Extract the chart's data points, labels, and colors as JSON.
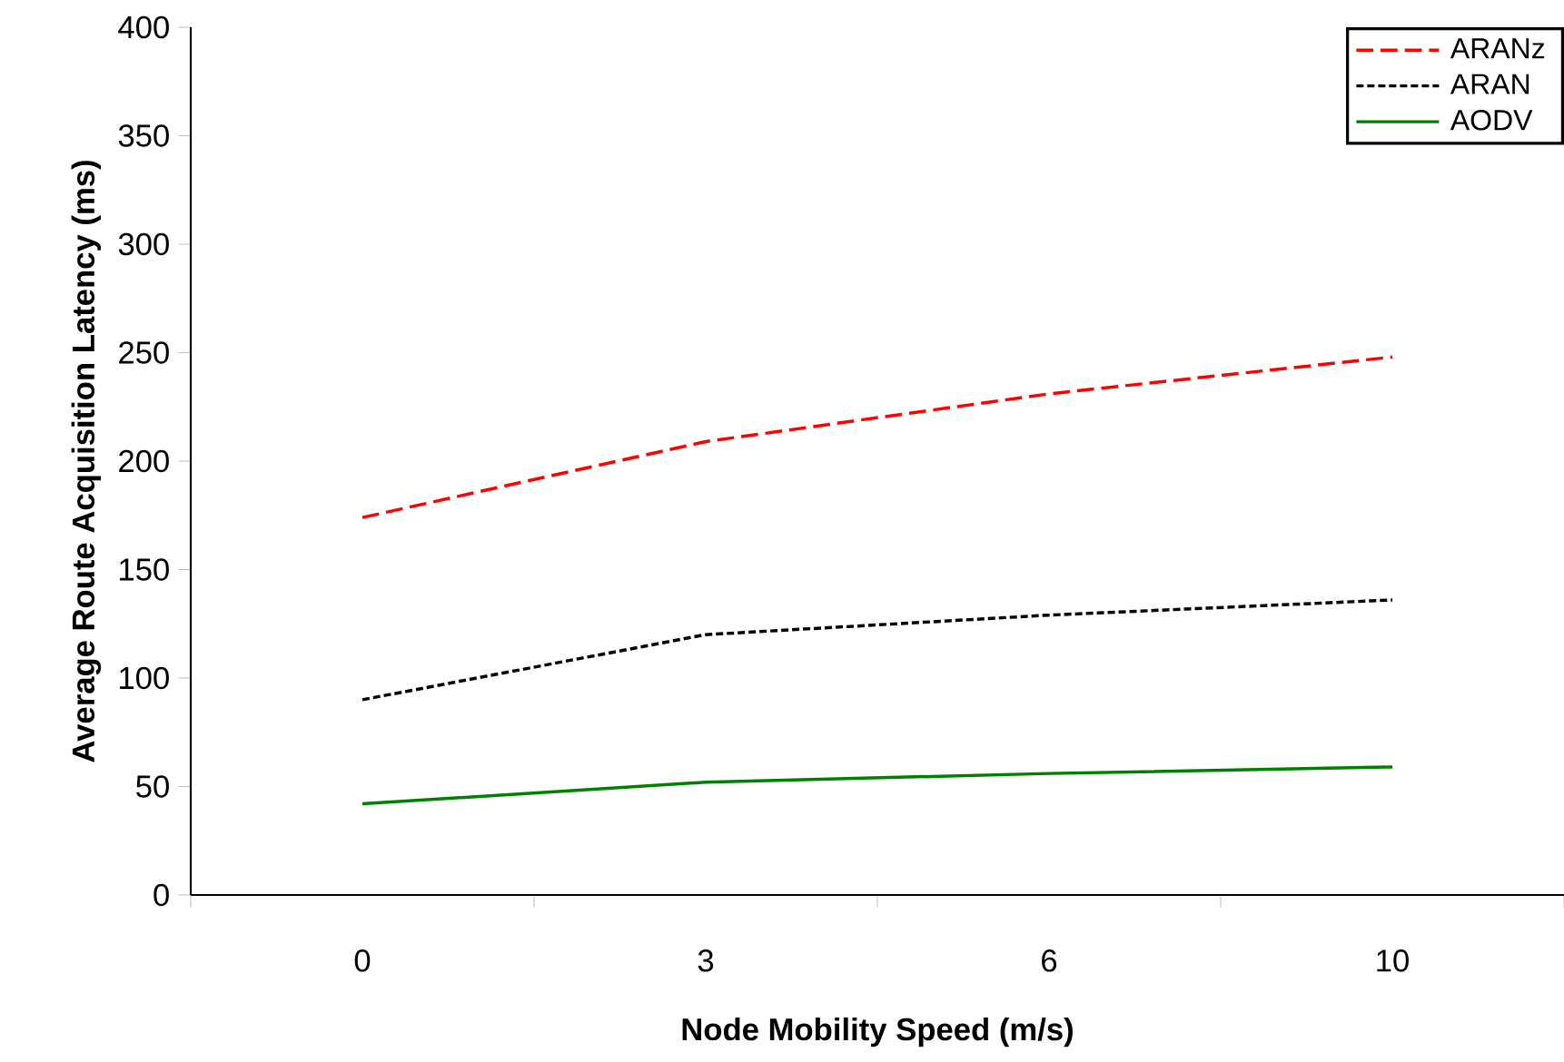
{
  "chart_data": {
    "type": "line",
    "xlabel": "Node Mobility Speed (m/s)",
    "ylabel": "Average Route Acquisition Latency (ms)",
    "categories": [
      "0",
      "3",
      "6",
      "10"
    ],
    "series": [
      {
        "name": "ARANz",
        "color": "#ff0000",
        "line_style": "dashed",
        "values": [
          174,
          209,
          231,
          248
        ]
      },
      {
        "name": "ARAN",
        "color": "#000000",
        "line_style": "dotted",
        "values": [
          90,
          120,
          129,
          136
        ]
      },
      {
        "name": "AODV",
        "color": "#008000",
        "line_style": "solid",
        "values": [
          42,
          52,
          56,
          59
        ]
      }
    ],
    "ylim": [
      0,
      400
    ],
    "yticks": [
      0,
      50,
      100,
      150,
      200,
      250,
      300,
      350,
      400
    ],
    "legend": "top right",
    "grid": false
  }
}
